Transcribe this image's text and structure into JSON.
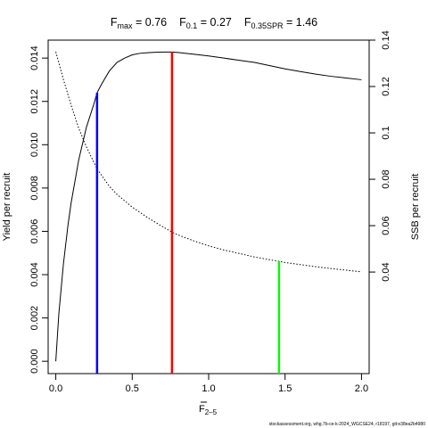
{
  "chart_data": {
    "type": "line",
    "title": {
      "fmax_label": "F",
      "fmax_sub": "max",
      "fmax_value": " = 0.76",
      "f01_label": "F",
      "f01_sub": "0.1",
      "f01_value": " = 0.27",
      "fspr_label": "F",
      "fspr_sub": "0.35SPR",
      "fspr_value": " = 1.46"
    },
    "xlabel": {
      "main": "F",
      "sub": "2–5"
    },
    "ylabel_left": "Yield per recruit",
    "ylabel_right": "SSB per recruit",
    "xlim": [
      -0.05,
      2.05
    ],
    "ylim_left": [
      -0.00057,
      0.01483
    ],
    "ylim_right": [
      -0.0038,
      0.14
    ],
    "x_ticks": [
      {
        "value": 0.0,
        "label": "0.0"
      },
      {
        "value": 0.5,
        "label": "0.5"
      },
      {
        "value": 1.0,
        "label": "1.0"
      },
      {
        "value": 1.5,
        "label": "1.5"
      },
      {
        "value": 2.0,
        "label": "2.0"
      }
    ],
    "y_left_ticks": [
      {
        "value": 0.0,
        "label": "0.000"
      },
      {
        "value": 0.002,
        "label": "0.002"
      },
      {
        "value": 0.004,
        "label": "0.004"
      },
      {
        "value": 0.006,
        "label": "0.006"
      },
      {
        "value": 0.008,
        "label": "0.008"
      },
      {
        "value": 0.01,
        "label": "0.010"
      },
      {
        "value": 0.012,
        "label": "0.012"
      },
      {
        "value": 0.014,
        "label": "0.014"
      }
    ],
    "y_right_ticks": [
      {
        "value": 0.04,
        "label": "0.04"
      },
      {
        "value": 0.06,
        "label": "0.06"
      },
      {
        "value": 0.08,
        "label": "0.08"
      },
      {
        "value": 0.1,
        "label": "0.1"
      },
      {
        "value": 0.12,
        "label": "0.12"
      },
      {
        "value": 0.14,
        "label": "0.14"
      }
    ],
    "series": [
      {
        "axis": "left",
        "style": "solid",
        "color": "#000000",
        "x": [
          0.0,
          0.02,
          0.05,
          0.08,
          0.1,
          0.15,
          0.2,
          0.25,
          0.27,
          0.3,
          0.35,
          0.4,
          0.45,
          0.5,
          0.55,
          0.6,
          0.65,
          0.7,
          0.76,
          0.8,
          0.9,
          1.0,
          1.1,
          1.2,
          1.3,
          1.4,
          1.5,
          1.6,
          1.7,
          1.8,
          1.9,
          2.0
        ],
        "y": [
          0.0,
          0.0022,
          0.0045,
          0.0063,
          0.0073,
          0.0093,
          0.0108,
          0.0119,
          0.0124,
          0.0128,
          0.0134,
          0.0138,
          0.014,
          0.01415,
          0.01422,
          0.01425,
          0.01427,
          0.01428,
          0.01428,
          0.01426,
          0.01418,
          0.0141,
          0.014,
          0.0139,
          0.0138,
          0.01365,
          0.0135,
          0.01338,
          0.01326,
          0.01316,
          0.01308,
          0.013
        ]
      },
      {
        "axis": "right",
        "style": "dotted",
        "color": "#000000",
        "x": [
          0.0,
          0.05,
          0.1,
          0.15,
          0.2,
          0.27,
          0.35,
          0.4,
          0.5,
          0.6,
          0.7,
          0.76,
          0.8,
          0.9,
          1.0,
          1.1,
          1.2,
          1.3,
          1.4,
          1.46,
          1.5,
          1.6,
          1.7,
          1.8,
          1.9,
          2.0
        ],
        "y": [
          0.135,
          0.123,
          0.112,
          0.102,
          0.094,
          0.0845,
          0.077,
          0.0735,
          0.068,
          0.0635,
          0.0595,
          0.0572,
          0.056,
          0.0535,
          0.0513,
          0.0495,
          0.048,
          0.0465,
          0.0453,
          0.0446,
          0.0441,
          0.0432,
          0.0423,
          0.0415,
          0.0408,
          0.0401
        ]
      }
    ],
    "reference_lines": [
      {
        "name": "F0.1",
        "x": 0.27,
        "y_top": 0.0124,
        "axis": "left",
        "color": "#0000ff"
      },
      {
        "name": "Fmax",
        "x": 0.76,
        "y_top": 0.01428,
        "axis": "left",
        "color": "#ff0000"
      },
      {
        "name": "F0.35SPR",
        "x": 1.46,
        "y_top": 0.0446,
        "axis": "right",
        "color": "#00ff00"
      }
    ],
    "grid": false
  },
  "footnote": "stockassessment.org, whg.7b-ce-k-2024_WGCSE24, r18197, git:e38ea2b4980"
}
